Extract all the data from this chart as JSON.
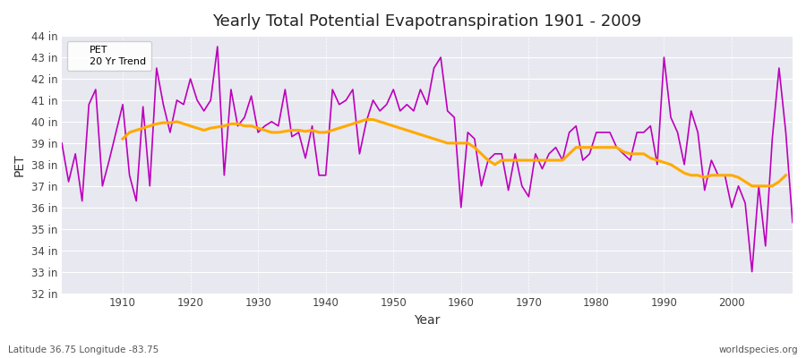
{
  "title": "Yearly Total Potential Evapotranspiration 1901 - 2009",
  "xlabel": "Year",
  "ylabel": "PET",
  "subtitle": "Latitude 36.75 Longitude -83.75",
  "watermark": "worldspecies.org",
  "pet_color": "#bb00bb",
  "trend_color": "#ffaa00",
  "fig_bg_color": "#ffffff",
  "plot_bg_color": "#e8e8f0",
  "ylim": [
    32,
    44
  ],
  "yticks": [
    32,
    33,
    34,
    35,
    36,
    37,
    38,
    39,
    40,
    41,
    42,
    43,
    44
  ],
  "xticks": [
    1910,
    1920,
    1930,
    1940,
    1950,
    1960,
    1970,
    1980,
    1990,
    2000
  ],
  "years": [
    1901,
    1902,
    1903,
    1904,
    1905,
    1906,
    1907,
    1908,
    1909,
    1910,
    1911,
    1912,
    1913,
    1914,
    1915,
    1916,
    1917,
    1918,
    1919,
    1920,
    1921,
    1922,
    1923,
    1924,
    1925,
    1926,
    1927,
    1928,
    1929,
    1930,
    1931,
    1932,
    1933,
    1934,
    1935,
    1936,
    1937,
    1938,
    1939,
    1940,
    1941,
    1942,
    1943,
    1944,
    1945,
    1946,
    1947,
    1948,
    1949,
    1950,
    1951,
    1952,
    1953,
    1954,
    1955,
    1956,
    1957,
    1958,
    1959,
    1960,
    1961,
    1962,
    1963,
    1964,
    1965,
    1966,
    1967,
    1968,
    1969,
    1970,
    1971,
    1972,
    1973,
    1974,
    1975,
    1976,
    1977,
    1978,
    1979,
    1980,
    1981,
    1982,
    1983,
    1984,
    1985,
    1986,
    1987,
    1988,
    1989,
    1990,
    1991,
    1992,
    1993,
    1994,
    1995,
    1996,
    1997,
    1998,
    1999,
    2000,
    2001,
    2002,
    2003,
    2004,
    2005,
    2006,
    2007,
    2008,
    2009
  ],
  "pet_values": [
    39.0,
    37.2,
    38.5,
    36.3,
    40.8,
    41.5,
    37.0,
    38.2,
    39.5,
    40.8,
    37.5,
    36.3,
    40.7,
    37.0,
    42.5,
    40.8,
    39.5,
    41.0,
    40.8,
    42.0,
    41.0,
    40.5,
    41.0,
    43.5,
    37.5,
    41.5,
    39.8,
    40.2,
    41.2,
    39.5,
    39.8,
    40.0,
    39.8,
    41.5,
    39.3,
    39.5,
    38.3,
    39.8,
    37.5,
    37.5,
    41.5,
    40.8,
    41.0,
    41.5,
    38.5,
    40.0,
    41.0,
    40.5,
    40.8,
    41.5,
    40.5,
    40.8,
    40.5,
    41.5,
    40.8,
    42.5,
    43.0,
    40.5,
    40.2,
    36.0,
    39.5,
    39.2,
    37.0,
    38.2,
    38.5,
    38.5,
    36.8,
    38.5,
    37.0,
    36.5,
    38.5,
    37.8,
    38.5,
    38.8,
    38.2,
    39.5,
    39.8,
    38.2,
    38.5,
    39.5,
    39.5,
    39.5,
    38.8,
    38.5,
    38.2,
    39.5,
    39.5,
    39.8,
    38.0,
    43.0,
    40.2,
    39.5,
    38.0,
    40.5,
    39.5,
    36.8,
    38.2,
    37.5,
    37.5,
    36.0,
    37.0,
    36.2,
    33.0,
    37.0,
    34.2,
    39.2,
    42.5,
    39.5,
    35.3
  ],
  "trend_years": [
    1910,
    1911,
    1912,
    1913,
    1914,
    1915,
    1916,
    1917,
    1918,
    1919,
    1920,
    1921,
    1922,
    1923,
    1924,
    1925,
    1926,
    1927,
    1928,
    1929,
    1930,
    1931,
    1932,
    1933,
    1934,
    1935,
    1936,
    1937,
    1938,
    1939,
    1940,
    1941,
    1942,
    1943,
    1944,
    1945,
    1946,
    1947,
    1948,
    1949,
    1950,
    1951,
    1952,
    1953,
    1954,
    1955,
    1956,
    1957,
    1958,
    1959,
    1960,
    1961,
    1962,
    1963,
    1964,
    1965,
    1966,
    1967,
    1968,
    1969,
    1970,
    1971,
    1972,
    1973,
    1974,
    1975,
    1976,
    1977,
    1978,
    1979,
    1980,
    1981,
    1982,
    1983,
    1984,
    1985,
    1986,
    1987,
    1988,
    1989,
    1990,
    1991,
    1992,
    1993,
    1994,
    1995,
    1996,
    1997,
    1998,
    1999,
    2000,
    2001,
    2002,
    2003,
    2004,
    2005,
    2006,
    2007,
    2008
  ],
  "trend_values": [
    39.2,
    39.5,
    39.6,
    39.7,
    39.8,
    39.9,
    39.95,
    39.95,
    40.0,
    39.9,
    39.8,
    39.7,
    39.6,
    39.7,
    39.75,
    39.8,
    39.9,
    39.9,
    39.8,
    39.8,
    39.7,
    39.6,
    39.5,
    39.5,
    39.55,
    39.6,
    39.6,
    39.55,
    39.6,
    39.5,
    39.5,
    39.6,
    39.7,
    39.8,
    39.9,
    40.0,
    40.1,
    40.1,
    40.0,
    39.9,
    39.8,
    39.7,
    39.6,
    39.5,
    39.4,
    39.3,
    39.2,
    39.1,
    39.0,
    39.0,
    39.0,
    39.0,
    38.8,
    38.5,
    38.2,
    38.0,
    38.2,
    38.2,
    38.2,
    38.2,
    38.2,
    38.2,
    38.2,
    38.2,
    38.2,
    38.2,
    38.5,
    38.8,
    38.8,
    38.8,
    38.8,
    38.8,
    38.8,
    38.8,
    38.6,
    38.5,
    38.5,
    38.5,
    38.3,
    38.2,
    38.1,
    38.0,
    37.8,
    37.6,
    37.5,
    37.5,
    37.4,
    37.5,
    37.5,
    37.5,
    37.5,
    37.4,
    37.2,
    37.0,
    37.0,
    37.0,
    37.0,
    37.2,
    37.5
  ]
}
